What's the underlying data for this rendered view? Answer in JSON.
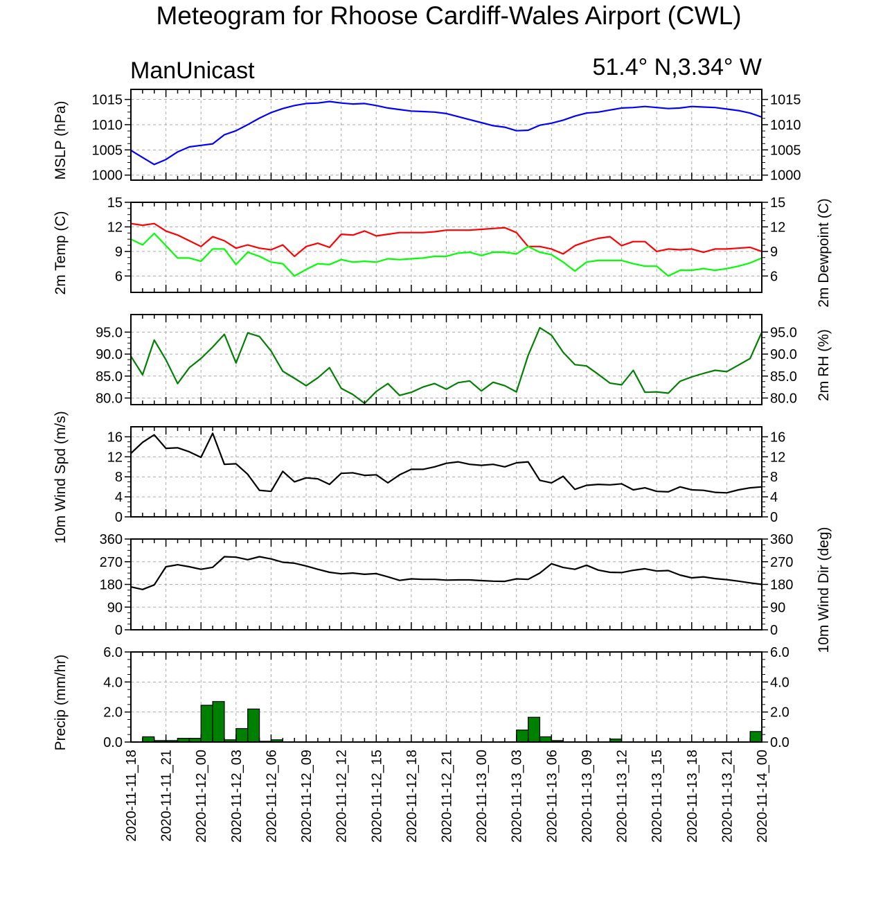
{
  "title": "Meteogram for Rhoose Cardiff-Wales Airport (CWL)",
  "model_label": "ManUnicast",
  "location_label": "51.4° N,3.34° W",
  "colors": {
    "mslp": "#0000ff",
    "temp": "#ff0000",
    "dewpoint": "#00ff00",
    "rh": "#008000",
    "wind": "#000000",
    "precip_fill": "#008000",
    "grid": "#aaaaaa"
  },
  "chart_data": {
    "type": "line",
    "time_start": "2020-11-11 18:00",
    "x_tick_labels": [
      "2020-11-11_18",
      "2020-11-11_21",
      "2020-11-12_00",
      "2020-11-12_03",
      "2020-11-12_06",
      "2020-11-12_09",
      "2020-11-12_12",
      "2020-11-12_15",
      "2020-11-12_18",
      "2020-11-12_21",
      "2020-11-13_00",
      "2020-11-13_03",
      "2020-11-13_06",
      "2020-11-13_09",
      "2020-11-13_12",
      "2020-11-13_15",
      "2020-11-13_18",
      "2020-11-13_21",
      "2020-11-14_00"
    ],
    "panels": [
      {
        "key": "mslp",
        "ylabel_left": "MSLP (hPa)",
        "ylabel_right": "",
        "ylim": [
          999,
          1017
        ],
        "yticks": [
          1000,
          1005,
          1010,
          1015
        ],
        "ytick_labels": [
          "1000",
          "1005",
          "1010",
          "1015"
        ],
        "right_ticklabels": true,
        "series": [
          {
            "color_key": "mslp",
            "values": [
              1004.9,
              1003.5,
              1002.1,
              1003.1,
              1004.6,
              1005.6,
              1005.9,
              1006.2,
              1008.0,
              1008.8,
              1010.0,
              1011.3,
              1012.4,
              1013.2,
              1013.8,
              1014.2,
              1014.3,
              1014.6,
              1014.3,
              1014.1,
              1014.2,
              1013.8,
              1013.3,
              1013.0,
              1012.7,
              1012.6,
              1012.5,
              1012.2,
              1011.6,
              1011.0,
              1010.4,
              1009.8,
              1009.5,
              1008.8,
              1008.9,
              1009.9,
              1010.3,
              1010.9,
              1011.7,
              1012.3,
              1012.5,
              1012.9,
              1013.3,
              1013.4,
              1013.6,
              1013.4,
              1013.2,
              1013.3,
              1013.6,
              1013.5,
              1013.4,
              1013.1,
              1012.8,
              1012.3,
              1011.5
            ]
          }
        ]
      },
      {
        "key": "temp",
        "ylabel_left": "2m Temp (C)",
        "ylabel_right": "2m Dewpoint (C)",
        "ylim": [
          4,
          15
        ],
        "yticks": [
          6,
          9,
          12,
          15
        ],
        "ytick_labels": [
          "6",
          "9",
          "12",
          "15"
        ],
        "right_ticklabels": true,
        "series": [
          {
            "name": "",
            "color_key": "temp",
            "values": [
              12.4,
              12.2,
              12.4,
              11.5,
              11.0,
              10.3,
              9.6,
              10.8,
              10.3,
              9.4,
              9.8,
              9.4,
              9.2,
              9.8,
              8.4,
              9.6,
              10.0,
              9.5,
              11.1,
              11.0,
              11.5,
              10.9,
              11.1,
              11.3,
              11.3,
              11.3,
              11.4,
              11.6,
              11.6,
              11.6,
              11.7,
              11.8,
              11.9,
              11.3,
              9.6,
              9.6,
              9.3,
              8.7,
              9.7,
              10.2,
              10.6,
              10.8,
              9.7,
              10.2,
              10.2,
              9.0,
              9.3,
              9.2,
              9.3,
              8.9,
              9.3,
              9.3,
              9.4,
              9.5,
              9.0
            ]
          },
          {
            "name": "",
            "color_key": "dewpoint",
            "values": [
              10.5,
              9.8,
              11.2,
              9.7,
              8.2,
              8.2,
              7.8,
              9.3,
              9.3,
              7.4,
              8.9,
              8.4,
              7.7,
              7.5,
              6.0,
              6.8,
              7.5,
              7.4,
              8.0,
              7.7,
              7.8,
              7.7,
              8.1,
              8.0,
              8.1,
              8.2,
              8.4,
              8.4,
              8.8,
              8.9,
              8.5,
              8.9,
              8.9,
              8.7,
              9.6,
              8.9,
              8.6,
              7.7,
              6.6,
              7.7,
              7.9,
              7.9,
              7.9,
              7.5,
              7.2,
              7.2,
              6.0,
              6.7,
              6.7,
              6.9,
              6.7,
              6.9,
              7.2,
              7.6,
              8.2
            ]
          }
        ]
      },
      {
        "key": "rh",
        "ylabel_left": "",
        "ylabel_right": "2m RH (%)",
        "ylim": [
          78.5,
          99
        ],
        "yticks": [
          80,
          85,
          90,
          95
        ],
        "ytick_labels": [
          "80.0",
          "85.0",
          "90.0",
          "95.0"
        ],
        "right_ticklabels": true,
        "series": [
          {
            "color_key": "rh",
            "values": [
              89.5,
              85.3,
              93.2,
              88.7,
              83.3,
              86.9,
              89.0,
              91.6,
              94.5,
              88.0,
              94.8,
              94.0,
              90.7,
              86.1,
              84.5,
              82.8,
              84.6,
              86.9,
              82.2,
              80.8,
              78.8,
              81.5,
              83.3,
              80.6,
              81.3,
              82.5,
              83.3,
              82.0,
              83.5,
              83.9,
              81.6,
              83.6,
              82.8,
              81.4,
              89.7,
              96.0,
              94.3,
              90.4,
              87.6,
              87.3,
              85.4,
              83.4,
              83.0,
              86.3,
              81.3,
              81.4,
              81.1,
              83.8,
              84.8,
              85.6,
              86.3,
              86.0,
              87.5,
              89.0,
              95.0
            ]
          }
        ]
      },
      {
        "key": "wspd",
        "ylabel_left": "10m Wind Spd (m/s)",
        "ylabel_right": "",
        "ylim": [
          0,
          18
        ],
        "yticks": [
          0,
          4,
          8,
          12,
          16
        ],
        "ytick_labels": [
          "0",
          "4",
          "8",
          "12",
          "16"
        ],
        "right_ticklabels": true,
        "series": [
          {
            "color_key": "wind",
            "values": [
              12.7,
              14.9,
              16.4,
              13.7,
              13.8,
              13.0,
              11.9,
              16.7,
              10.5,
              10.6,
              8.5,
              5.3,
              5.1,
              9.1,
              7.0,
              7.8,
              7.6,
              6.5,
              8.7,
              8.8,
              8.3,
              8.4,
              6.8,
              8.4,
              9.5,
              9.5,
              10.0,
              10.7,
              11.0,
              10.5,
              10.3,
              10.5,
              10.0,
              10.8,
              11.0,
              7.3,
              6.8,
              8.1,
              5.5,
              6.3,
              6.5,
              6.4,
              6.6,
              5.4,
              5.8,
              5.1,
              5.0,
              6.0,
              5.4,
              5.3,
              4.9,
              4.8,
              5.4,
              5.8,
              6.0
            ]
          }
        ]
      },
      {
        "key": "wdir",
        "ylabel_left": "",
        "ylabel_right": "10m Wind Dir (deg)",
        "ylim": [
          0,
          360
        ],
        "yticks": [
          0,
          90,
          180,
          270,
          360
        ],
        "ytick_labels": [
          "0",
          "90",
          "180",
          "270",
          "360"
        ],
        "right_ticklabels": true,
        "series": [
          {
            "color_key": "wind",
            "values": [
              170,
              160,
              178,
              250,
              258,
              250,
              240,
              248,
              290,
              288,
              278,
              290,
              281,
              268,
              264,
              253,
              240,
              228,
              222,
              225,
              220,
              223,
              210,
              196,
              202,
              200,
              200,
              197,
              198,
              198,
              195,
              193,
              192,
              202,
              200,
              225,
              262,
              247,
              240,
              256,
              237,
              228,
              227,
              236,
              242,
              233,
              235,
              217,
              206,
              210,
              203,
              199,
              193,
              186,
              180
            ]
          }
        ]
      },
      {
        "key": "precip",
        "ylabel_left": "Precip (mm/hr)",
        "ylabel_right": "",
        "ylim": [
          0,
          6
        ],
        "yticks": [
          0,
          2,
          4,
          6
        ],
        "ytick_labels": [
          "0.0",
          "2.0",
          "4.0",
          "6.0"
        ],
        "right_ticklabels": true,
        "bars": {
          "color_key": "precip_fill",
          "values": [
            0,
            0.35,
            0.1,
            0.1,
            0.25,
            0.25,
            2.45,
            2.7,
            0.15,
            0.9,
            2.2,
            0.05,
            0.15,
            0,
            0,
            0,
            0,
            0,
            0,
            0,
            0,
            0,
            0,
            0,
            0,
            0,
            0,
            0,
            0,
            0,
            0,
            0,
            0,
            0.8,
            1.65,
            0.35,
            0.1,
            0,
            0,
            0,
            0,
            0.2,
            0,
            0,
            0,
            0,
            0,
            0,
            0,
            0,
            0,
            0,
            0,
            0.7
          ]
        }
      }
    ]
  }
}
